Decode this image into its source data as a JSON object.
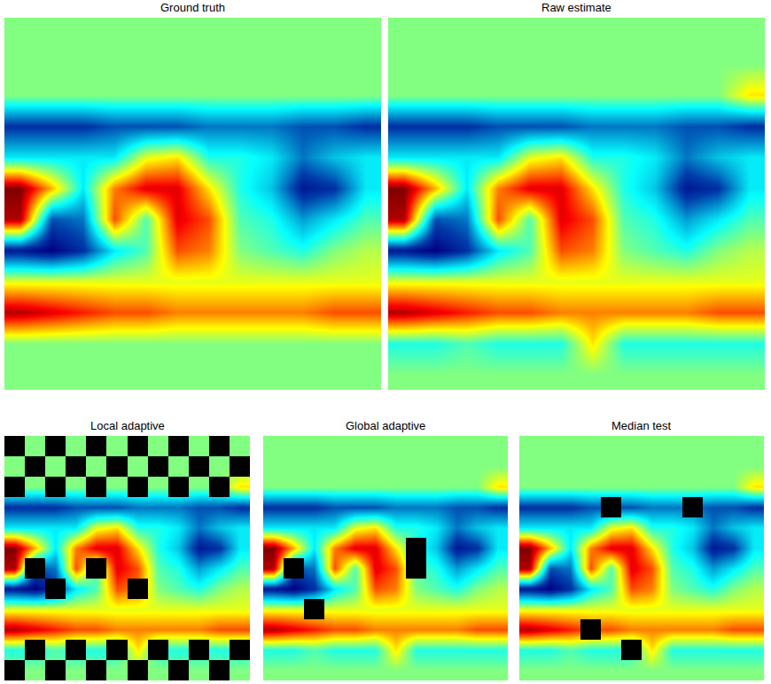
{
  "chart_data": [
    {
      "type": "heatmap",
      "title": "Ground truth",
      "color": "Jet",
      "zlim": [
        -1,
        1
      ],
      "tick_labels": false,
      "z": [
        [
          0,
          0,
          0,
          0,
          0,
          0,
          0,
          0,
          0,
          0,
          0,
          0
        ],
        [
          0,
          0,
          0,
          0,
          0,
          0,
          0,
          0,
          0,
          0,
          0,
          0
        ],
        [
          0,
          0,
          0,
          0,
          0,
          0,
          0,
          0,
          0,
          0,
          0,
          0
        ],
        [
          -0.8,
          -0.8,
          -0.8,
          -0.7,
          -0.7,
          -0.7,
          -0.6,
          -0.6,
          -0.6,
          -0.7,
          -0.7,
          -0.8
        ],
        [
          -0.3,
          -0.3,
          -0.3,
          -0.3,
          0.2,
          0.3,
          -0.2,
          -0.2,
          -0.3,
          -0.6,
          -0.4,
          -0.3
        ],
        [
          1,
          0.4,
          -0.3,
          0.5,
          0.8,
          0.8,
          0.3,
          -0.2,
          -0.4,
          -0.9,
          -0.8,
          -0.3
        ],
        [
          0.9,
          -0.7,
          -0.6,
          0.6,
          -0.1,
          0.8,
          0.6,
          -0.1,
          -0.2,
          -0.5,
          -0.3,
          -0.1
        ],
        [
          -0.9,
          -1,
          -0.8,
          -0.3,
          -0.1,
          0.6,
          0.5,
          0,
          -0.1,
          -0.2,
          0,
          0.1
        ],
        [
          0.2,
          0.2,
          0.2,
          0.2,
          0.2,
          0.2,
          0.2,
          0.2,
          0.2,
          0.2,
          0.2,
          0.2
        ],
        [
          0.9,
          0.8,
          0.7,
          0.6,
          0.6,
          0.5,
          0.5,
          0.5,
          0.5,
          0.5,
          0.6,
          0.6
        ],
        [
          0,
          0,
          0,
          0,
          0,
          0,
          0,
          0,
          0,
          0,
          0,
          0
        ],
        [
          0,
          0,
          0,
          0,
          0,
          0,
          0,
          0,
          0,
          0,
          0,
          0
        ]
      ],
      "flagged": []
    },
    {
      "type": "heatmap",
      "title": "Raw estimate",
      "color": "Jet",
      "zlim": [
        -1,
        1
      ],
      "tick_labels": false,
      "z": [
        [
          0,
          0,
          0,
          0,
          0,
          0,
          0,
          0,
          0,
          0,
          0,
          0
        ],
        [
          0,
          0,
          0,
          0,
          0,
          0,
          0,
          0,
          0,
          0,
          0,
          0
        ],
        [
          0,
          0,
          0,
          0,
          0,
          0,
          0,
          0,
          0,
          0,
          0,
          0.3
        ],
        [
          -0.8,
          -0.8,
          -0.8,
          -0.7,
          -0.7,
          -0.7,
          -0.6,
          -0.6,
          -0.6,
          -0.7,
          -0.7,
          -0.8
        ],
        [
          -0.3,
          -0.3,
          -0.3,
          -0.3,
          0.2,
          0.3,
          -0.2,
          -0.2,
          -0.3,
          -0.6,
          -0.4,
          -0.3
        ],
        [
          1,
          0.4,
          -0.3,
          0.5,
          0.8,
          0.8,
          0.3,
          -0.2,
          -0.4,
          -0.9,
          -0.8,
          -0.3
        ],
        [
          0.9,
          -0.7,
          -0.6,
          0.6,
          -0.1,
          0.8,
          0.6,
          -0.1,
          -0.2,
          -0.5,
          -0.3,
          -0.1
        ],
        [
          -0.9,
          -1,
          -0.8,
          -0.3,
          -0.1,
          0.6,
          0.5,
          0,
          -0.1,
          -0.2,
          0,
          0.1
        ],
        [
          0.2,
          0.2,
          0.2,
          0.2,
          0.2,
          0.2,
          0.2,
          0.2,
          0.2,
          0.2,
          0.2,
          0.2
        ],
        [
          0.9,
          0.8,
          0.7,
          0.6,
          0.6,
          0.5,
          0.5,
          0.5,
          0.5,
          0.5,
          0.6,
          0.6
        ],
        [
          -0.2,
          -0.2,
          -0.1,
          -0.2,
          -0.2,
          -0.2,
          0.3,
          -0.2,
          -0.2,
          -0.2,
          -0.2,
          -0.2
        ],
        [
          0,
          0,
          0,
          0,
          0,
          0,
          0,
          0,
          0,
          0,
          0,
          0
        ]
      ],
      "flagged": []
    },
    {
      "type": "heatmap",
      "title": "Local adaptive",
      "color": "Jet",
      "zlim": [
        -1,
        1
      ],
      "tick_labels": false,
      "z": [
        [
          0,
          0,
          0,
          0,
          0,
          0,
          0,
          0,
          0,
          0,
          0,
          0
        ],
        [
          0,
          0,
          0,
          0,
          0,
          0,
          0,
          0,
          0,
          0,
          0,
          0
        ],
        [
          0,
          0,
          0,
          0,
          0,
          0,
          0,
          0,
          0,
          0,
          0,
          0.3
        ],
        [
          -0.8,
          -0.8,
          -0.8,
          -0.7,
          -0.7,
          -0.7,
          -0.6,
          -0.6,
          -0.6,
          -0.7,
          -0.7,
          -0.8
        ],
        [
          -0.3,
          -0.3,
          -0.3,
          -0.3,
          0.2,
          0.3,
          -0.2,
          -0.2,
          -0.3,
          -0.6,
          -0.4,
          -0.3
        ],
        [
          1,
          0.4,
          -0.3,
          0.5,
          0.8,
          0.8,
          0.3,
          -0.2,
          -0.4,
          -0.9,
          -0.8,
          -0.3
        ],
        [
          0.9,
          -0.7,
          -0.6,
          0.6,
          -0.1,
          0.8,
          0.6,
          -0.1,
          -0.2,
          -0.5,
          -0.3,
          -0.1
        ],
        [
          -0.9,
          -1,
          -0.8,
          -0.3,
          -0.1,
          0.6,
          0.5,
          0,
          -0.1,
          -0.2,
          0,
          0.1
        ],
        [
          0.2,
          0.2,
          0.2,
          0.2,
          0.2,
          0.2,
          0.2,
          0.2,
          0.2,
          0.2,
          0.2,
          0.2
        ],
        [
          0.9,
          0.8,
          0.7,
          0.6,
          0.6,
          0.5,
          0.5,
          0.5,
          0.5,
          0.5,
          0.6,
          0.6
        ],
        [
          -0.2,
          -0.2,
          -0.1,
          -0.2,
          -0.2,
          -0.2,
          0.3,
          -0.2,
          -0.2,
          -0.2,
          -0.2,
          -0.2
        ],
        [
          0,
          0,
          0,
          0,
          0,
          0,
          0,
          0,
          0,
          0,
          0,
          0
        ]
      ],
      "flagged": [
        [
          0,
          0
        ],
        [
          0,
          2
        ],
        [
          0,
          4
        ],
        [
          0,
          6
        ],
        [
          0,
          8
        ],
        [
          0,
          10
        ],
        [
          1,
          1
        ],
        [
          1,
          3
        ],
        [
          1,
          5
        ],
        [
          1,
          7
        ],
        [
          1,
          9
        ],
        [
          1,
          11
        ],
        [
          2,
          0
        ],
        [
          2,
          2
        ],
        [
          2,
          4
        ],
        [
          2,
          6
        ],
        [
          2,
          8
        ],
        [
          2,
          10
        ],
        [
          6,
          1
        ],
        [
          7,
          2
        ],
        [
          6,
          4
        ],
        [
          7,
          6
        ],
        [
          10,
          1
        ],
        [
          10,
          3
        ],
        [
          10,
          5
        ],
        [
          10,
          7
        ],
        [
          10,
          9
        ],
        [
          10,
          11
        ],
        [
          11,
          0
        ],
        [
          11,
          2
        ],
        [
          11,
          4
        ],
        [
          11,
          6
        ],
        [
          11,
          8
        ],
        [
          11,
          10
        ]
      ]
    },
    {
      "type": "heatmap",
      "title": "Global adaptive",
      "color": "Jet",
      "zlim": [
        -1,
        1
      ],
      "tick_labels": false,
      "z": [
        [
          0,
          0,
          0,
          0,
          0,
          0,
          0,
          0,
          0,
          0,
          0,
          0
        ],
        [
          0,
          0,
          0,
          0,
          0,
          0,
          0,
          0,
          0,
          0,
          0,
          0
        ],
        [
          0,
          0,
          0,
          0,
          0,
          0,
          0,
          0,
          0,
          0,
          0,
          0.3
        ],
        [
          -0.8,
          -0.8,
          -0.8,
          -0.7,
          -0.7,
          -0.7,
          -0.6,
          -0.6,
          -0.6,
          -0.7,
          -0.7,
          -0.8
        ],
        [
          -0.3,
          -0.3,
          -0.3,
          -0.3,
          0.2,
          0.3,
          -0.2,
          -0.2,
          -0.3,
          -0.6,
          -0.4,
          -0.3
        ],
        [
          1,
          0.4,
          -0.3,
          0.5,
          0.8,
          0.8,
          0.3,
          -0.2,
          -0.4,
          -0.9,
          -0.8,
          -0.3
        ],
        [
          0.9,
          -0.7,
          -0.6,
          0.6,
          -0.1,
          0.8,
          0.6,
          -0.1,
          -0.2,
          -0.5,
          -0.3,
          -0.1
        ],
        [
          -0.9,
          -1,
          -0.8,
          -0.3,
          -0.1,
          0.6,
          0.5,
          0,
          -0.1,
          -0.2,
          0,
          0.1
        ],
        [
          0.2,
          0.2,
          0.2,
          0.2,
          0.2,
          0.2,
          0.2,
          0.2,
          0.2,
          0.2,
          0.2,
          0.2
        ],
        [
          0.9,
          0.8,
          0.7,
          0.6,
          0.6,
          0.5,
          0.5,
          0.5,
          0.5,
          0.5,
          0.6,
          0.6
        ],
        [
          -0.2,
          -0.2,
          -0.1,
          -0.2,
          -0.2,
          -0.2,
          0.3,
          -0.2,
          -0.2,
          -0.2,
          -0.2,
          -0.2
        ],
        [
          0,
          0,
          0,
          0,
          0,
          0,
          0,
          0,
          0,
          0,
          0,
          0
        ]
      ],
      "flagged": [
        [
          6,
          1
        ],
        [
          8,
          2
        ],
        [
          5,
          7
        ],
        [
          6,
          7
        ]
      ]
    },
    {
      "type": "heatmap",
      "title": "Median test",
      "color": "Jet",
      "zlim": [
        -1,
        1
      ],
      "tick_labels": false,
      "z": [
        [
          0,
          0,
          0,
          0,
          0,
          0,
          0,
          0,
          0,
          0,
          0,
          0
        ],
        [
          0,
          0,
          0,
          0,
          0,
          0,
          0,
          0,
          0,
          0,
          0,
          0
        ],
        [
          0,
          0,
          0,
          0,
          0,
          0,
          0,
          0,
          0,
          0,
          0,
          0.3
        ],
        [
          -0.8,
          -0.8,
          -0.8,
          -0.7,
          -0.7,
          -0.7,
          -0.6,
          -0.6,
          -0.6,
          -0.7,
          -0.7,
          -0.8
        ],
        [
          -0.3,
          -0.3,
          -0.3,
          -0.3,
          0.2,
          0.3,
          -0.2,
          -0.2,
          -0.3,
          -0.6,
          -0.4,
          -0.3
        ],
        [
          1,
          0.4,
          -0.3,
          0.5,
          0.8,
          0.8,
          0.3,
          -0.2,
          -0.4,
          -0.9,
          -0.8,
          -0.3
        ],
        [
          0.9,
          -0.7,
          -0.6,
          0.6,
          -0.1,
          0.8,
          0.6,
          -0.1,
          -0.2,
          -0.5,
          -0.3,
          -0.1
        ],
        [
          -0.9,
          -1,
          -0.8,
          -0.3,
          -0.1,
          0.6,
          0.5,
          0,
          -0.1,
          -0.2,
          0,
          0.1
        ],
        [
          0.2,
          0.2,
          0.2,
          0.2,
          0.2,
          0.2,
          0.2,
          0.2,
          0.2,
          0.2,
          0.2,
          0.2
        ],
        [
          0.9,
          0.8,
          0.7,
          0.6,
          0.6,
          0.5,
          0.5,
          0.5,
          0.5,
          0.5,
          0.6,
          0.6
        ],
        [
          -0.2,
          -0.2,
          -0.1,
          -0.2,
          -0.2,
          -0.2,
          0.3,
          -0.2,
          -0.2,
          -0.2,
          -0.2,
          -0.2
        ],
        [
          0,
          0,
          0,
          0,
          0,
          0,
          0,
          0,
          0,
          0,
          0,
          0
        ]
      ],
      "flagged": [
        [
          3,
          4
        ],
        [
          3,
          8
        ],
        [
          9,
          3
        ],
        [
          10,
          5
        ]
      ]
    }
  ]
}
